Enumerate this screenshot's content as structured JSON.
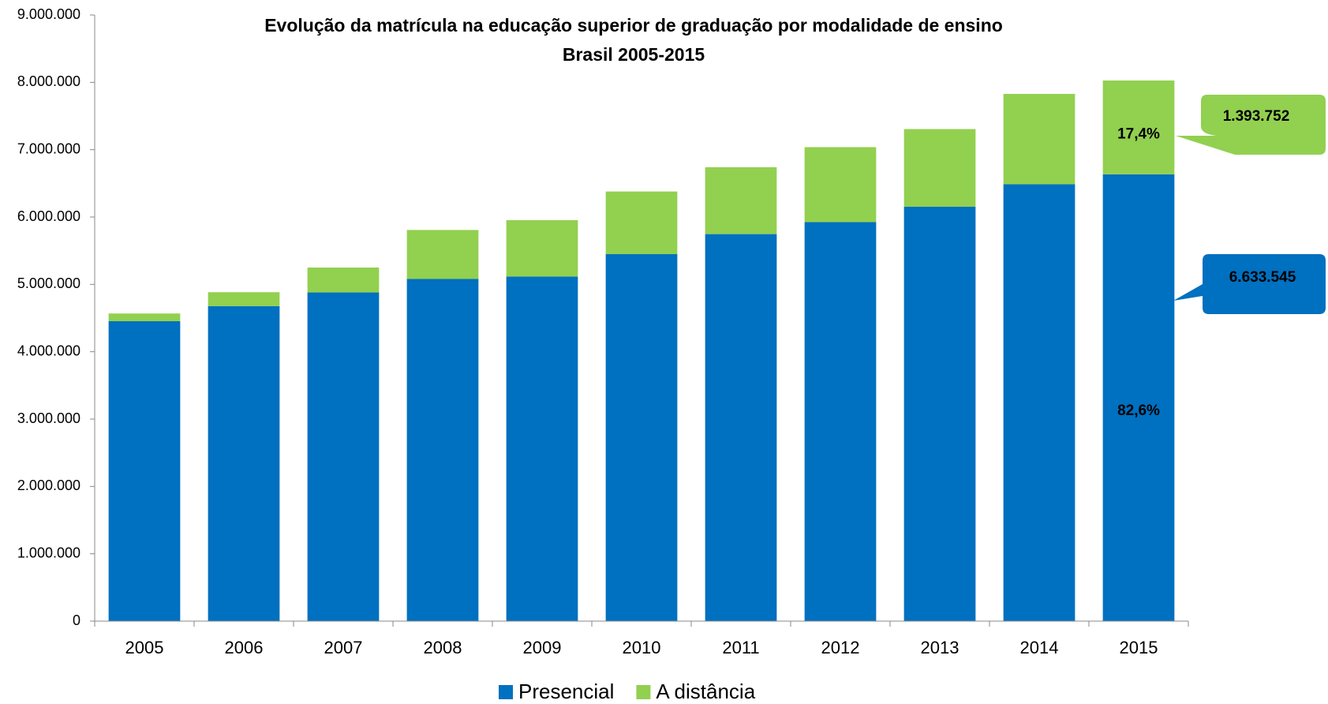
{
  "chart_data": {
    "type": "stacked_bar",
    "title": "Evolução da matrícula na educação superior de graduação por modalidade de ensino",
    "subtitle": "Brasil 2005-2015",
    "categories": [
      "2005",
      "2006",
      "2007",
      "2008",
      "2009",
      "2010",
      "2011",
      "2012",
      "2013",
      "2014",
      "2015"
    ],
    "series": [
      {
        "name": "Presencial",
        "color": "#0070c0",
        "values": [
          4453156,
          4676646,
          4880381,
          5080056,
          5115896,
          5449120,
          5746762,
          5923838,
          6152405,
          6486171,
          6633545
        ],
        "value_labels": [
          null,
          null,
          null,
          null,
          null,
          null,
          null,
          null,
          null,
          null,
          "6.633.545"
        ],
        "share_label": "82,6%"
      },
      {
        "name": "A distância",
        "color": "#92d050",
        "values": [
          114642,
          207206,
          369766,
          727961,
          838125,
          930179,
          992927,
          1113850,
          1153572,
          1341842,
          1393752
        ],
        "value_labels": [
          null,
          null,
          null,
          null,
          null,
          null,
          null,
          null,
          null,
          null,
          "1.393.752"
        ],
        "share_label": "17,4%"
      }
    ],
    "ylim": [
      0,
      9000000
    ],
    "yticks": [
      0,
      {
        "value": 1000000,
        "label": "1.000.000"
      },
      {
        "value": 2000000,
        "label": "2.000.000"
      },
      {
        "value": 3000000,
        "label": "3.000.000"
      },
      {
        "value": 4000000,
        "label": "4.000.000"
      },
      {
        "value": 5000000,
        "label": "5.000.000"
      },
      {
        "value": 6000000,
        "label": "6.000.000"
      },
      {
        "value": 7000000,
        "label": "7.000.000"
      },
      {
        "value": 8000000,
        "label": "8.000.000"
      },
      {
        "value": 9000000,
        "label": "9.000.000"
      }
    ],
    "grid": false,
    "legend": "bottom"
  }
}
